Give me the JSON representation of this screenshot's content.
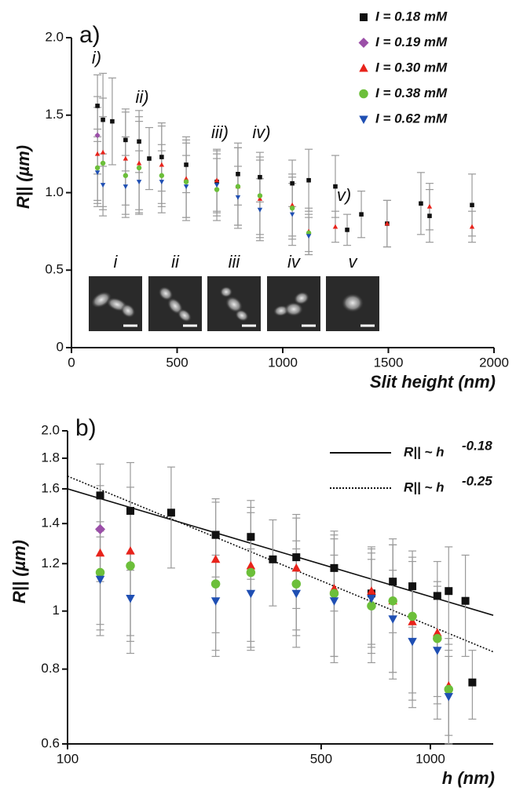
{
  "chart_data": [
    {
      "type": "scatter",
      "panel_label": "a)",
      "xlabel": "Slit height (nm)",
      "ylabel": "R|| (µm)",
      "xlim": [
        0,
        2000
      ],
      "xticks": [
        0,
        500,
        1000,
        1500,
        2000
      ],
      "ylim": [
        0,
        2
      ],
      "yticks": [
        0,
        0.5,
        {
          "value": 1,
          "label": "1.0"
        },
        1.5,
        {
          "value": 2,
          "label": "2.0"
        }
      ],
      "xscale": "linear",
      "yscale": "linear",
      "legend": "top-right",
      "grid": false,
      "annotations": [
        "i)",
        "ii)",
        "iii)",
        "iv)",
        "v)"
      ],
      "insets": [
        "i",
        "ii",
        "iii",
        "iv",
        "v"
      ],
      "series": [
        {
          "name": "I = 0.18 mM",
          "color": "#111111",
          "marker": "square",
          "x": [
            123,
            149,
            193,
            256,
            320,
            368,
            427,
            543,
            688,
            788,
            892,
            1045,
            1123,
            1249,
            1305,
            1372,
            1494,
            1654,
            1695,
            1896
          ],
          "values": [
            1.56,
            1.47,
            1.46,
            1.34,
            1.33,
            1.22,
            1.23,
            1.18,
            1.07,
            1.12,
            1.1,
            1.06,
            1.08,
            1.04,
            0.76,
            0.86,
            0.8,
            0.93,
            0.85,
            0.92
          ],
          "errors": [
            0.2,
            0.3,
            0.28,
            0.2,
            0.2,
            0.2,
            0.22,
            0.18,
            0.2,
            0.2,
            0.16,
            0.15,
            0.2,
            0.2,
            0.1,
            0.15,
            0.15,
            0.2,
            0.17,
            0.2
          ]
        },
        {
          "name": "I = 0.19 mM",
          "color": "#9b4fa8",
          "marker": "diamond",
          "x": [
            123
          ],
          "values": [
            1.37
          ],
          "errors": [
            0.25
          ]
        },
        {
          "name": "I = 0.30 mM",
          "color": "#e8231b",
          "marker": "triangle",
          "x": [
            123,
            149,
            256,
            320,
            427,
            543,
            688,
            788,
            892,
            1045,
            1123,
            1249,
            1494,
            1695,
            1896
          ],
          "values": [
            1.25,
            1.26,
            1.22,
            1.19,
            1.18,
            1.09,
            1.08,
            1.04,
            0.96,
            0.92,
            0.75,
            0.78,
            0.8,
            0.91,
            0.78
          ],
          "errors": [
            0.3,
            0.35,
            0.3,
            0.3,
            0.25,
            0.25,
            0.2,
            0.25,
            0.25,
            0.2,
            0.15,
            0.1,
            0.15,
            0.15,
            0.1
          ]
        },
        {
          "name": "I = 0.38 mM",
          "color": "#6cbf3a",
          "marker": "circle",
          "x": [
            123,
            149,
            256,
            320,
            427,
            543,
            688,
            788,
            892,
            1045,
            1123
          ],
          "values": [
            1.16,
            1.19,
            1.11,
            1.16,
            1.11,
            1.07,
            1.02,
            1.04,
            0.98,
            0.9,
            0.74
          ],
          "errors": [
            0.25,
            0.3,
            0.25,
            0.3,
            0.2,
            0.25,
            0.2,
            0.25,
            0.25,
            0.2,
            0.12
          ]
        },
        {
          "name": "I = 0.62 mM",
          "color": "#1f4fb3",
          "marker": "triangle-down",
          "x": [
            123,
            149,
            256,
            320,
            427,
            543,
            688,
            788,
            892,
            1045,
            1123
          ],
          "values": [
            1.13,
            1.05,
            1.04,
            1.07,
            1.07,
            1.04,
            1.05,
            0.97,
            0.89,
            0.86,
            0.72
          ],
          "errors": [
            0.2,
            0.2,
            0.2,
            0.2,
            0.2,
            0.2,
            0.2,
            0.2,
            0.2,
            0.2,
            0.12
          ]
        }
      ]
    },
    {
      "type": "scatter",
      "panel_label": "b)",
      "xlabel": "h (nm)",
      "ylabel": "R|| (µm)",
      "xlim": [
        100,
        1490
      ],
      "xticks": [
        100,
        500,
        1000
      ],
      "ylim": [
        0.6,
        2
      ],
      "yticks": [
        0.6,
        0.8,
        1,
        1.2,
        1.4,
        1.6,
        1.8,
        {
          "value": 2,
          "label": "2.0"
        }
      ],
      "xscale": "log",
      "yscale": "log",
      "grid": false,
      "fits": [
        {
          "label": "R|| ~ h",
          "exponent": -0.18,
          "style": "solid",
          "x": [
            100,
            1490
          ],
          "values": [
            1.6,
            0.984
          ]
        },
        {
          "label": "R|| ~ h",
          "exponent": -0.25,
          "style": "dotted",
          "x": [
            100,
            1490
          ],
          "values": [
            1.68,
            0.855
          ]
        }
      ],
      "series": [
        {
          "name": "I = 0.18 mM",
          "color": "#111111",
          "marker": "square",
          "x": [
            123,
            149,
            193,
            256,
            320,
            368,
            427,
            543,
            688,
            788,
            892,
            1045,
            1123,
            1249,
            1305
          ],
          "values": [
            1.56,
            1.47,
            1.46,
            1.34,
            1.33,
            1.22,
            1.23,
            1.18,
            1.07,
            1.12,
            1.1,
            1.06,
            1.08,
            1.04,
            0.76
          ],
          "errors": [
            0.2,
            0.3,
            0.28,
            0.2,
            0.2,
            0.2,
            0.22,
            0.18,
            0.2,
            0.2,
            0.16,
            0.15,
            0.2,
            0.2,
            0.1
          ]
        },
        {
          "name": "I = 0.19 mM",
          "color": "#9b4fa8",
          "marker": "diamond",
          "x": [
            123
          ],
          "values": [
            1.37
          ],
          "errors": [
            0.25
          ]
        },
        {
          "name": "I = 0.30 mM",
          "color": "#e8231b",
          "marker": "triangle",
          "x": [
            123,
            149,
            256,
            320,
            427,
            543,
            688,
            788,
            892,
            1045,
            1123
          ],
          "values": [
            1.25,
            1.26,
            1.22,
            1.19,
            1.18,
            1.09,
            1.08,
            1.04,
            0.96,
            0.92,
            0.75
          ],
          "errors": [
            0.3,
            0.35,
            0.3,
            0.3,
            0.25,
            0.25,
            0.2,
            0.25,
            0.25,
            0.2,
            0.15
          ]
        },
        {
          "name": "I = 0.38 mM",
          "color": "#6cbf3a",
          "marker": "circle",
          "x": [
            123,
            149,
            256,
            320,
            427,
            543,
            688,
            788,
            892,
            1045,
            1123
          ],
          "values": [
            1.16,
            1.19,
            1.11,
            1.16,
            1.11,
            1.07,
            1.02,
            1.04,
            0.98,
            0.9,
            0.74
          ],
          "errors": [
            0.25,
            0.3,
            0.25,
            0.3,
            0.2,
            0.25,
            0.2,
            0.25,
            0.25,
            0.2,
            0.12
          ]
        },
        {
          "name": "I = 0.62 mM",
          "color": "#1f4fb3",
          "marker": "triangle-down",
          "x": [
            123,
            149,
            256,
            320,
            427,
            543,
            688,
            788,
            892,
            1045,
            1123
          ],
          "values": [
            1.13,
            1.05,
            1.04,
            1.07,
            1.07,
            1.04,
            1.05,
            0.97,
            0.89,
            0.86,
            0.72
          ],
          "errors": [
            0.2,
            0.2,
            0.2,
            0.2,
            0.2,
            0.2,
            0.2,
            0.2,
            0.2,
            0.2,
            0.12
          ]
        }
      ]
    }
  ]
}
